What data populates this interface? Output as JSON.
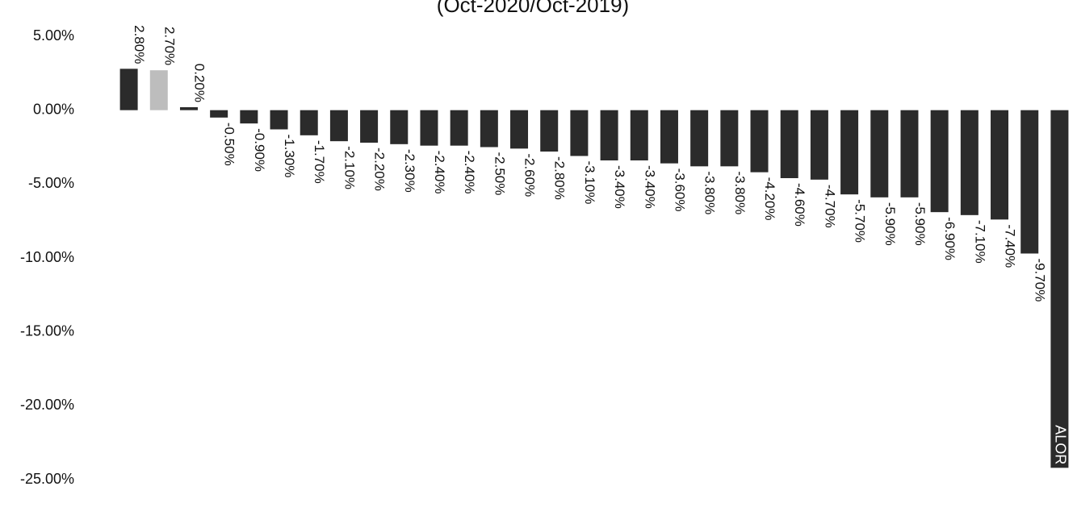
{
  "chart_data": {
    "type": "bar",
    "title": "(Oct-2020/Oct-2019)",
    "categories": [
      null,
      null,
      null,
      null,
      null,
      null,
      null,
      null,
      null,
      null,
      null,
      null,
      null,
      null,
      null,
      null,
      null,
      null,
      null,
      null,
      null,
      null,
      null,
      null,
      null,
      null,
      null,
      null,
      null,
      null,
      null,
      null
    ],
    "values": [
      2.8,
      2.7,
      0.2,
      -0.5,
      -0.9,
      -1.3,
      -1.7,
      -2.1,
      -2.2,
      -2.3,
      -2.4,
      -2.4,
      -2.5,
      -2.6,
      -2.8,
      -3.1,
      -3.4,
      -3.4,
      -3.6,
      -3.8,
      -3.8,
      -4.2,
      -4.6,
      -4.7,
      -5.7,
      -5.9,
      -5.9,
      -6.9,
      -7.1,
      -7.4,
      -9.7,
      -24.2
    ],
    "value_labels": [
      "2.80%",
      "2.70%",
      "0.20%",
      "-0.50%",
      "-0.90%",
      "-1.30%",
      "-1.70%",
      "-2.10%",
      "-2.20%",
      "-2.30%",
      "-2.40%",
      "-2.40%",
      "-2.50%",
      "-2.60%",
      "-2.80%",
      "-3.10%",
      "-3.40%",
      "-3.40%",
      "-3.60%",
      "-3.80%",
      "-3.80%",
      "-4.20%",
      "-4.60%",
      "-4.70%",
      "-5.70%",
      "-5.90%",
      "-5.90%",
      "-6.90%",
      "-7.10%",
      "-7.40%",
      "-9.70%",
      null
    ],
    "colors": [
      "#2b2b2b",
      "#bdbdbd",
      "#2b2b2b",
      "#2b2b2b",
      "#2b2b2b",
      "#2b2b2b",
      "#2b2b2b",
      "#2b2b2b",
      "#2b2b2b",
      "#2b2b2b",
      "#2b2b2b",
      "#2b2b2b",
      "#2b2b2b",
      "#2b2b2b",
      "#2b2b2b",
      "#2b2b2b",
      "#2b2b2b",
      "#2b2b2b",
      "#2b2b2b",
      "#2b2b2b",
      "#2b2b2b",
      "#2b2b2b",
      "#2b2b2b",
      "#2b2b2b",
      "#2b2b2b",
      "#2b2b2b",
      "#2b2b2b",
      "#2b2b2b",
      "#2b2b2b",
      "#2b2b2b",
      "#2b2b2b",
      "#2b2b2b"
    ],
    "annotations": [
      {
        "text": "ALOR"
      }
    ],
    "ylim": [
      -25,
      5
    ],
    "yticks": [
      {
        "value": 5,
        "label": "5.00%"
      },
      {
        "value": 0,
        "label": "0.00%"
      },
      {
        "value": -5,
        "label": "-5.00%"
      },
      {
        "value": -10,
        "label": "-10.00%"
      },
      {
        "value": -15,
        "label": "-15.00%"
      },
      {
        "value": -20,
        "label": "-20.00%"
      },
      {
        "value": -25,
        "label": "-25.00%"
      }
    ],
    "grid": false
  }
}
